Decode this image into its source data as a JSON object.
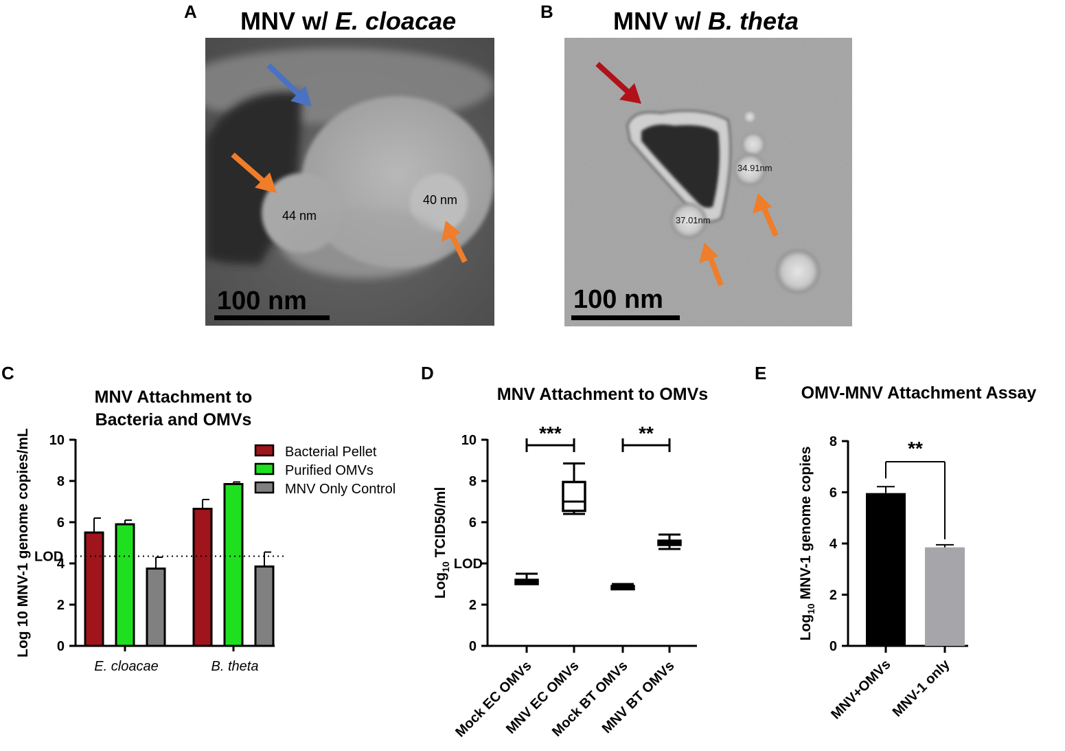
{
  "panels": {
    "A": {
      "letter": "A",
      "title_prefix": "MNV w/ ",
      "title_species": "E. cloacae",
      "labels": [
        "44 nm",
        "40 nm"
      ],
      "scale_bar": "100 nm",
      "arrows": [
        {
          "color": "#4a72c4"
        },
        {
          "color": "#ef7d2a"
        },
        {
          "color": "#ef7d2a"
        }
      ]
    },
    "B": {
      "letter": "B",
      "title_prefix": "MNV w/ ",
      "title_species": "B. theta",
      "labels": [
        "34.91nm",
        "37.01nm"
      ],
      "scale_bar": "100 nm",
      "arrows": [
        {
          "color": "#b0121a"
        },
        {
          "color": "#ef7d2a"
        },
        {
          "color": "#ef7d2a"
        }
      ]
    },
    "C": {
      "letter": "C"
    },
    "D": {
      "letter": "D"
    },
    "E": {
      "letter": "E"
    }
  },
  "chart_data": [
    {
      "id": "C",
      "type": "bar",
      "title": "MNV Attachment to Bacteria and OMVs",
      "title_lines": [
        "MNV Attachment to",
        "Bacteria and OMVs"
      ],
      "ylabel": "Log 10 MNV-1 genome copies/mL",
      "ylim": [
        0,
        10
      ],
      "yticks": [
        0,
        2,
        4,
        6,
        8,
        10
      ],
      "categories": [
        "E. cloacae",
        "B. theta"
      ],
      "reference_line": {
        "label": "LOD",
        "value": 4.35
      },
      "legend_position": "top-right",
      "series": [
        {
          "name": "Bacterial Pellet",
          "color": "#a0141b",
          "values": [
            5.5,
            6.65
          ],
          "errors": [
            0.7,
            0.45
          ]
        },
        {
          "name": "Purified OMVs",
          "color": "#1fe01f",
          "values": [
            5.9,
            7.85
          ],
          "errors": [
            0.2,
            0.1
          ]
        },
        {
          "name": "MNV Only Control",
          "color": "#808080",
          "values": [
            3.75,
            3.85
          ],
          "errors": [
            0.55,
            0.7
          ]
        }
      ]
    },
    {
      "id": "D",
      "type": "box",
      "title": "MNV Attachment to OMVs",
      "ylabel_main": "Log",
      "ylabel_sub": "10",
      "ylabel_rest": " TCID50/ml",
      "ylim": [
        0,
        10
      ],
      "yticks": [
        0,
        2,
        4,
        6,
        8,
        10
      ],
      "lod_label": "LOD",
      "lod_value": 4,
      "categories": [
        "Mock EC OMVs",
        "MNV EC OMVs",
        "Mock BT OMVs",
        "MNV BT OMVs"
      ],
      "boxes": [
        {
          "min": 3.0,
          "q1": 3.0,
          "median": 3.1,
          "q3": 3.2,
          "max": 3.5
        },
        {
          "min": 6.4,
          "q1": 6.55,
          "median": 7.0,
          "q3": 7.95,
          "max": 8.85
        },
        {
          "min": 2.75,
          "q1": 2.75,
          "median": 2.85,
          "q3": 2.9,
          "max": 3.0
        },
        {
          "min": 4.7,
          "q1": 4.9,
          "median": 5.0,
          "q3": 5.1,
          "max": 5.4
        }
      ],
      "significance": [
        {
          "from": 0,
          "to": 1,
          "label": "***"
        },
        {
          "from": 2,
          "to": 3,
          "label": "**"
        }
      ]
    },
    {
      "id": "E",
      "type": "bar",
      "title": "OMV-MNV Attachment Assay",
      "ylabel_main": "Log",
      "ylabel_sub": "10",
      "ylabel_rest": " MNV-1 genome copies",
      "ylim": [
        0,
        8
      ],
      "yticks": [
        0,
        2,
        4,
        6,
        8
      ],
      "categories": [
        "MNV+OMVs",
        "MNV-1 only"
      ],
      "values": [
        5.97,
        3.85
      ],
      "errors": [
        0.25,
        0.1
      ],
      "colors": [
        "#000000",
        "#a6a6aa"
      ],
      "significance": {
        "from": 0,
        "to": 1,
        "label": "**"
      }
    }
  ]
}
